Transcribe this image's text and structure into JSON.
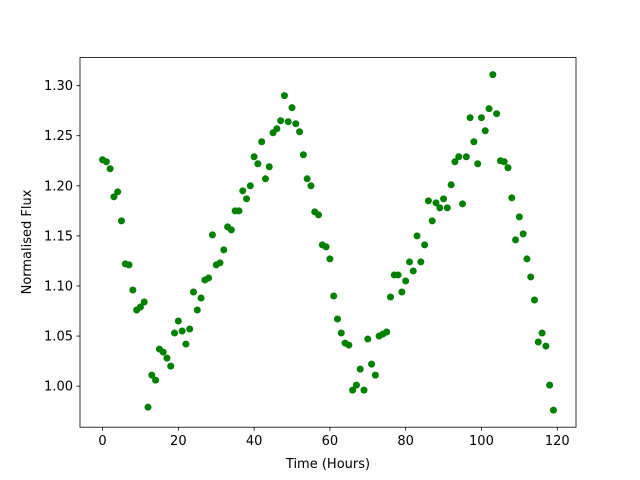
{
  "chart_data": {
    "type": "scatter",
    "x_label": "Time (Hours)",
    "y_label": "Normalised Flux",
    "xlim": [
      -5.95,
      124.95
    ],
    "ylim": [
      0.959,
      1.328
    ],
    "xticks": [
      0,
      20,
      40,
      60,
      80,
      100,
      120
    ],
    "yticks": [
      {
        "value": 1,
        "label": "1.00"
      },
      1.05,
      {
        "value": 1.1,
        "label": "1.10"
      },
      1.15,
      {
        "value": 1.2,
        "label": "1.20"
      },
      1.25,
      {
        "value": 1.3,
        "label": "1.30"
      }
    ],
    "color": "#008000",
    "x": [
      0,
      1,
      2,
      3,
      4,
      5,
      6,
      7,
      8,
      9,
      10,
      11,
      12,
      13,
      14,
      15,
      16,
      17,
      18,
      19,
      20,
      21,
      22,
      23,
      24,
      25,
      26,
      27,
      28,
      29,
      30,
      31,
      32,
      33,
      34,
      35,
      36,
      37,
      38,
      39,
      40,
      41,
      42,
      43,
      44,
      45,
      46,
      47,
      48,
      49,
      50,
      51,
      52,
      53,
      54,
      55,
      56,
      57,
      58,
      59,
      60,
      61,
      62,
      63,
      64,
      65,
      66,
      67,
      68,
      69,
      70,
      71,
      72,
      73,
      74,
      75,
      76,
      77,
      78,
      79,
      80,
      81,
      82,
      83,
      84,
      85,
      86,
      87,
      88,
      89,
      90,
      91,
      92,
      93,
      94,
      95,
      96,
      97,
      98,
      99,
      100,
      101,
      102,
      103,
      104,
      105,
      106,
      107,
      108,
      109,
      110,
      111,
      112,
      113,
      114,
      115,
      116,
      117,
      118,
      119
    ],
    "y": [
      1.226,
      1.224,
      1.217,
      1.189,
      1.194,
      1.165,
      1.122,
      1.121,
      1.096,
      1.076,
      1.079,
      1.084,
      0.979,
      1.011,
      1.006,
      1.037,
      1.034,
      1.028,
      1.02,
      1.053,
      1.065,
      1.055,
      1.042,
      1.057,
      1.094,
      1.076,
      1.088,
      1.106,
      1.108,
      1.151,
      1.121,
      1.123,
      1.136,
      1.159,
      1.156,
      1.175,
      1.175,
      1.195,
      1.187,
      1.2,
      1.229,
      1.222,
      1.244,
      1.207,
      1.219,
      1.253,
      1.257,
      1.265,
      1.29,
      1.264,
      1.278,
      1.262,
      1.254,
      1.231,
      1.207,
      1.2,
      1.174,
      1.171,
      1.141,
      1.139,
      1.127,
      1.09,
      1.067,
      1.053,
      1.043,
      1.041,
      0.996,
      1.001,
      1.017,
      0.996,
      1.047,
      1.022,
      1.011,
      1.05,
      1.052,
      1.054,
      1.089,
      1.111,
      1.111,
      1.094,
      1.105,
      1.124,
      1.115,
      1.15,
      1.124,
      1.141,
      1.185,
      1.165,
      1.183,
      1.178,
      1.187,
      1.178,
      1.201,
      1.224,
      1.229,
      1.182,
      1.229,
      1.268,
      1.244,
      1.222,
      1.268,
      1.255,
      1.277,
      1.311,
      1.272,
      1.225,
      1.224,
      1.218,
      1.188,
      1.146,
      1.169,
      1.152,
      1.127,
      1.109,
      1.086,
      1.044,
      1.053,
      1.04,
      1.001,
      0.976
    ]
  }
}
